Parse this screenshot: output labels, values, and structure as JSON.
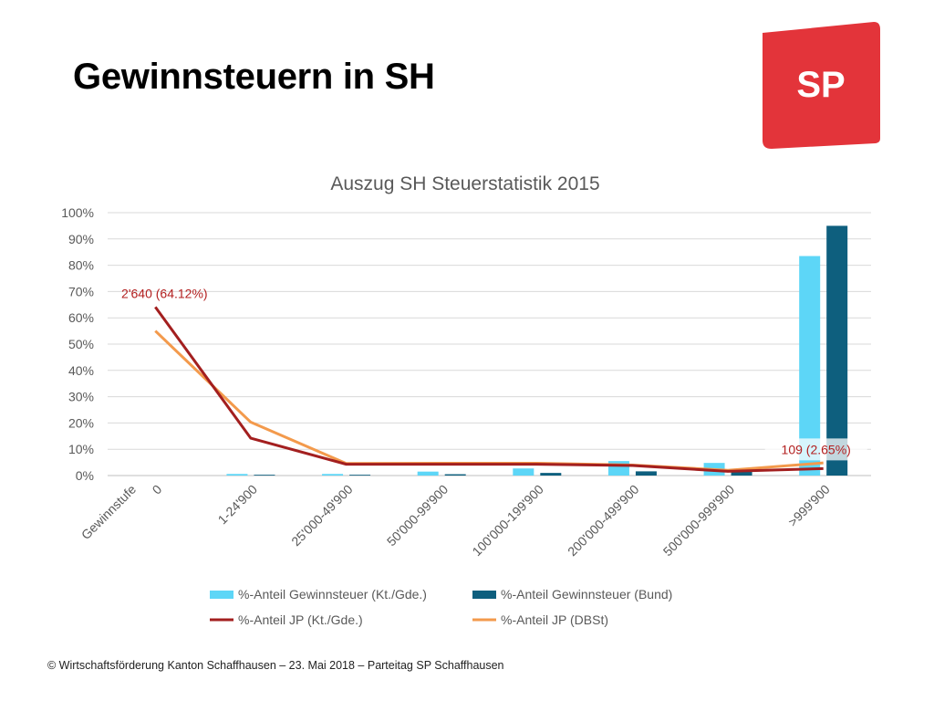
{
  "slide": {
    "title": "Gewinnsteuern in SH",
    "footer": "© Wirtschaftsförderung Kanton Schaffhausen – 23. Mai 2018 – Parteitag SP Schaffhausen"
  },
  "logo": {
    "text": "SP",
    "color": "#e3343a"
  },
  "chart_data": {
    "type": "bar",
    "title": "Auszug SH Steuerstatistik 2015",
    "xlabel": "Gewinnstufe",
    "ylabel": "",
    "ylim": [
      0,
      100
    ],
    "yticks": [
      "0%",
      "10%",
      "20%",
      "30%",
      "40%",
      "50%",
      "60%",
      "70%",
      "80%",
      "90%",
      "100%"
    ],
    "categories": [
      "0",
      "1-24'900",
      "25'000-49'900",
      "50'000-99'900",
      "100'000-199'900",
      "200'000-499'900",
      "500'000-999'900",
      ">999'900"
    ],
    "series": [
      {
        "name": "%-Anteil Gewinnsteuer (Kt./Gde.)",
        "kind": "bar",
        "color": "#5dd6f7",
        "values": [
          0,
          0.6,
          0.6,
          1.5,
          2.7,
          5.5,
          4.8,
          83.5
        ]
      },
      {
        "name": "%-Anteil Gewinnsteuer (Bund)",
        "kind": "bar",
        "color": "#0e5f7e",
        "values": [
          0,
          0.3,
          0.3,
          0.5,
          1.0,
          1.6,
          1.6,
          95.0
        ]
      },
      {
        "name": "%-Anteil JP (Kt./Gde.)",
        "kind": "line",
        "color": "#a31f1f",
        "values": [
          64.12,
          14.2,
          4.3,
          4.3,
          4.3,
          3.8,
          1.6,
          2.65
        ]
      },
      {
        "name": "%-Anteil JP (DBSt)",
        "kind": "line",
        "color": "#f39a4c",
        "values": [
          55,
          20.3,
          4.6,
          4.7,
          4.7,
          4.0,
          2.0,
          4.8
        ]
      }
    ],
    "annotations": [
      {
        "text": "2'640 (64.12%)",
        "series": 2,
        "index": 0,
        "color": "#b32020"
      },
      {
        "text": "109 (2.65%)",
        "series": 2,
        "index": 7,
        "color": "#b32020"
      }
    ],
    "grid": true,
    "legend_position": "bottom"
  }
}
